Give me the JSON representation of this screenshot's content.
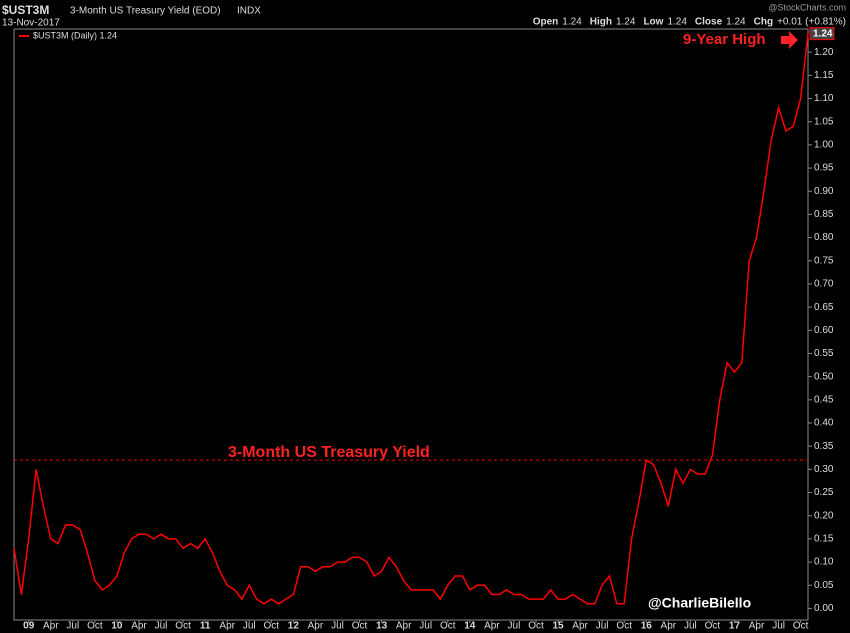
{
  "chart_data": {
    "type": "line",
    "symbol": "$UST3M",
    "title": "3-Month US Treasury Yield (EOD)",
    "exchange": "INDX",
    "date": "13-Nov-2017",
    "source": "@StockCharts.com",
    "quote": [
      {
        "label": "Open",
        "value": "1.24"
      },
      {
        "label": "High",
        "value": "1.24"
      },
      {
        "label": "Low",
        "value": "1.24"
      },
      {
        "label": "Close",
        "value": "1.24"
      },
      {
        "label": "Chg",
        "value": "+0.01 (+0.81%)"
      }
    ],
    "last_value_label": "1.24",
    "annotations": [
      "9-Year High",
      "3-Month US Treasury Yield"
    ],
    "credit": "@CharlieBilello",
    "reference_line": 0.32,
    "x": [
      "2008-11",
      "2008-12",
      "2009-01",
      "2009-02",
      "2009-03",
      "2009-04",
      "2009-05",
      "2009-06",
      "2009-07",
      "2009-08",
      "2009-09",
      "2009-10",
      "2009-11",
      "2009-12",
      "2010-01",
      "2010-02",
      "2010-03",
      "2010-04",
      "2010-05",
      "2010-06",
      "2010-07",
      "2010-08",
      "2010-09",
      "2010-10",
      "2010-11",
      "2010-12",
      "2011-01",
      "2011-02",
      "2011-03",
      "2011-04",
      "2011-05",
      "2011-06",
      "2011-07",
      "2011-08",
      "2011-09",
      "2011-10",
      "2011-11",
      "2011-12",
      "2012-01",
      "2012-02",
      "2012-03",
      "2012-04",
      "2012-05",
      "2012-06",
      "2012-07",
      "2012-08",
      "2012-09",
      "2012-10",
      "2012-11",
      "2012-12",
      "2013-01",
      "2013-02",
      "2013-03",
      "2013-04",
      "2013-05",
      "2013-06",
      "2013-07",
      "2013-08",
      "2013-09",
      "2013-10",
      "2013-11",
      "2013-12",
      "2014-01",
      "2014-02",
      "2014-03",
      "2014-04",
      "2014-05",
      "2014-06",
      "2014-07",
      "2014-08",
      "2014-09",
      "2014-10",
      "2014-11",
      "2014-12",
      "2015-01",
      "2015-02",
      "2015-03",
      "2015-04",
      "2015-05",
      "2015-06",
      "2015-07",
      "2015-08",
      "2015-09",
      "2015-10",
      "2015-11",
      "2015-12",
      "2016-01",
      "2016-02",
      "2016-03",
      "2016-04",
      "2016-05",
      "2016-06",
      "2016-07",
      "2016-08",
      "2016-09",
      "2016-10",
      "2016-11",
      "2016-12",
      "2017-01",
      "2017-02",
      "2017-03",
      "2017-04",
      "2017-05",
      "2017-06",
      "2017-07",
      "2017-08",
      "2017-09",
      "2017-10",
      "2017-11"
    ],
    "series": [
      {
        "name": "$UST3M (Daily) 1.24",
        "color": "#ff0000",
        "values": [
          0.13,
          0.03,
          0.15,
          0.3,
          0.22,
          0.15,
          0.14,
          0.18,
          0.18,
          0.17,
          0.12,
          0.06,
          0.04,
          0.05,
          0.07,
          0.12,
          0.15,
          0.16,
          0.16,
          0.15,
          0.16,
          0.15,
          0.15,
          0.13,
          0.14,
          0.13,
          0.15,
          0.12,
          0.08,
          0.05,
          0.04,
          0.02,
          0.05,
          0.02,
          0.01,
          0.02,
          0.01,
          0.02,
          0.03,
          0.09,
          0.09,
          0.08,
          0.09,
          0.09,
          0.1,
          0.1,
          0.11,
          0.11,
          0.1,
          0.07,
          0.08,
          0.11,
          0.09,
          0.06,
          0.04,
          0.04,
          0.04,
          0.04,
          0.02,
          0.05,
          0.07,
          0.07,
          0.04,
          0.05,
          0.05,
          0.03,
          0.03,
          0.04,
          0.03,
          0.03,
          0.02,
          0.02,
          0.02,
          0.04,
          0.02,
          0.02,
          0.03,
          0.02,
          0.01,
          0.01,
          0.05,
          0.07,
          0.01,
          0.01,
          0.15,
          0.23,
          0.32,
          0.31,
          0.27,
          0.22,
          0.3,
          0.27,
          0.3,
          0.29,
          0.29,
          0.33,
          0.45,
          0.53,
          0.51,
          0.53,
          0.75,
          0.8,
          0.9,
          1.01,
          1.08,
          1.03,
          1.04,
          1.1,
          1.24
        ]
      }
    ],
    "xlim": [
      "2008-11",
      "2017-11"
    ],
    "xticks": [
      {
        "value": "2009-01",
        "label": "09"
      },
      {
        "value": "2009-04",
        "label": "Apr"
      },
      {
        "value": "2009-07",
        "label": "Jul"
      },
      {
        "value": "2009-10",
        "label": "Oct"
      },
      {
        "value": "2010-01",
        "label": "10"
      },
      {
        "value": "2010-04",
        "label": "Apr"
      },
      {
        "value": "2010-07",
        "label": "Jul"
      },
      {
        "value": "2010-10",
        "label": "Oct"
      },
      {
        "value": "2011-01",
        "label": "11"
      },
      {
        "value": "2011-04",
        "label": "Apr"
      },
      {
        "value": "2011-07",
        "label": "Jul"
      },
      {
        "value": "2011-10",
        "label": "Oct"
      },
      {
        "value": "2012-01",
        "label": "12"
      },
      {
        "value": "2012-04",
        "label": "Apr"
      },
      {
        "value": "2012-07",
        "label": "Jul"
      },
      {
        "value": "2012-10",
        "label": "Oct"
      },
      {
        "value": "2013-01",
        "label": "13"
      },
      {
        "value": "2013-04",
        "label": "Apr"
      },
      {
        "value": "2013-07",
        "label": "Jul"
      },
      {
        "value": "2013-10",
        "label": "Oct"
      },
      {
        "value": "2014-01",
        "label": "14"
      },
      {
        "value": "2014-04",
        "label": "Apr"
      },
      {
        "value": "2014-07",
        "label": "Jul"
      },
      {
        "value": "2014-10",
        "label": "Oct"
      },
      {
        "value": "2015-01",
        "label": "15"
      },
      {
        "value": "2015-04",
        "label": "Apr"
      },
      {
        "value": "2015-07",
        "label": "Jul"
      },
      {
        "value": "2015-10",
        "label": "Oct"
      },
      {
        "value": "2016-01",
        "label": "16"
      },
      {
        "value": "2016-04",
        "label": "Apr"
      },
      {
        "value": "2016-07",
        "label": "Jul"
      },
      {
        "value": "2016-10",
        "label": "Oct"
      },
      {
        "value": "2017-01",
        "label": "17"
      },
      {
        "value": "2017-04",
        "label": "Apr"
      },
      {
        "value": "2017-07",
        "label": "Jul"
      },
      {
        "value": "2017-10",
        "label": "Oct"
      }
    ],
    "ylim": [
      -0.025,
      1.25
    ],
    "yticks": [
      {
        "value": 0,
        "label": "0.00"
      },
      {
        "value": 0.05,
        "label": "0.05"
      },
      {
        "value": 0.1,
        "label": "0.10"
      },
      {
        "value": 0.15,
        "label": "0.15"
      },
      {
        "value": 0.2,
        "label": "0.20"
      },
      {
        "value": 0.25,
        "label": "0.25"
      },
      {
        "value": 0.3,
        "label": "0.30"
      },
      {
        "value": 0.35,
        "label": "0.35"
      },
      {
        "value": 0.4,
        "label": "0.40"
      },
      {
        "value": 0.45,
        "label": "0.45"
      },
      {
        "value": 0.5,
        "label": "0.50"
      },
      {
        "value": 0.55,
        "label": "0.55"
      },
      {
        "value": 0.6,
        "label": "0.60"
      },
      {
        "value": 0.65,
        "label": "0.65"
      },
      {
        "value": 0.7,
        "label": "0.70"
      },
      {
        "value": 0.75,
        "label": "0.75"
      },
      {
        "value": 0.8,
        "label": "0.80"
      },
      {
        "value": 0.85,
        "label": "0.85"
      },
      {
        "value": 0.9,
        "label": "0.90"
      },
      {
        "value": 0.95,
        "label": "0.95"
      },
      {
        "value": 1,
        "label": "1.00"
      },
      {
        "value": 1.05,
        "label": "1.05"
      },
      {
        "value": 1.1,
        "label": "1.10"
      },
      {
        "value": 1.15,
        "label": "1.15"
      },
      {
        "value": 1.2,
        "label": "1.20"
      }
    ],
    "grid": false,
    "legend": "top-left"
  }
}
